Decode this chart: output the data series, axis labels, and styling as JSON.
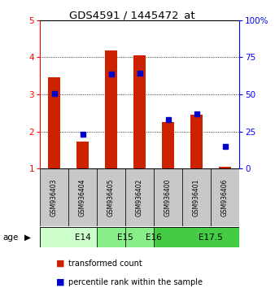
{
  "title": "GDS4591 / 1445472_at",
  "samples": [
    "GSM936403",
    "GSM936404",
    "GSM936405",
    "GSM936402",
    "GSM936400",
    "GSM936401",
    "GSM936406"
  ],
  "red_values": [
    3.45,
    1.72,
    4.18,
    4.05,
    2.25,
    2.45,
    1.05
  ],
  "blue_values": [
    3.02,
    1.93,
    3.55,
    3.56,
    2.32,
    2.48,
    1.6
  ],
  "age_groups": [
    {
      "label": "E14",
      "start": 0,
      "end": 2,
      "color": "#ccffcc"
    },
    {
      "label": "E15",
      "start": 2,
      "end": 3,
      "color": "#88ee88"
    },
    {
      "label": "E16",
      "start": 3,
      "end": 4,
      "color": "#88ee88"
    },
    {
      "label": "E17.5",
      "start": 4,
      "end": 7,
      "color": "#44cc44"
    }
  ],
  "ylim_left": [
    1,
    5
  ],
  "ylim_right": [
    0,
    100
  ],
  "yticks_left": [
    1,
    2,
    3,
    4,
    5
  ],
  "yticks_right": [
    0,
    25,
    50,
    75,
    100
  ],
  "bar_color": "#cc2200",
  "dot_color": "#0000cc",
  "bar_width": 0.45,
  "dot_marker_size": 4,
  "label_bg_color": "#c8c8c8",
  "plot_bg_color": "#ffffff"
}
